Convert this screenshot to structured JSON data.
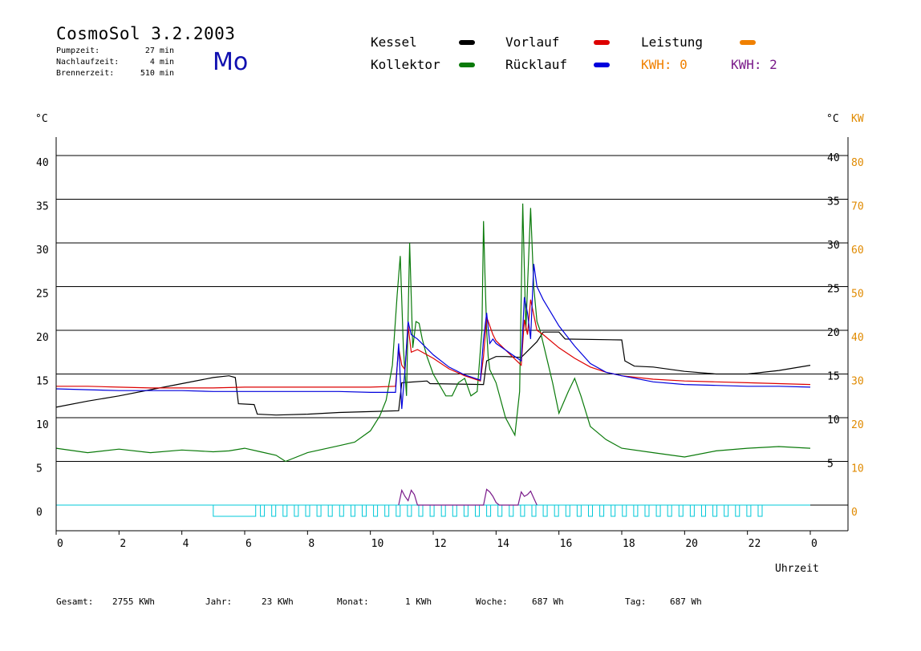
{
  "header": {
    "title": "CosmoSol 3.2.2003",
    "day": "Mo",
    "stats": [
      {
        "label": "Pumpzeit:",
        "value": "27 min"
      },
      {
        "label": "Nachlaufzeit:",
        "value": "4 min"
      },
      {
        "label": "Brennerzeit:",
        "value": "510 min"
      }
    ]
  },
  "legend": {
    "kessel": "Kessel",
    "kollektor": "Kollektor",
    "vorlauf": "Vorlauf",
    "ruecklauf": "Rücklauf",
    "leistung": "Leistung",
    "kwh1_label": "KWH:",
    "kwh1_value": "0",
    "kwh2_label": "KWH:",
    "kwh2_value": "2"
  },
  "colors": {
    "kessel": "#000000",
    "kollektor": "#0a7a0a",
    "vorlauf": "#dd0000",
    "ruecklauf": "#0000dd",
    "leistung": "#f08000",
    "kwh2": "#7a1a8a",
    "pump": "#00c8d8",
    "kw_axis": "#e08a00"
  },
  "axes": {
    "left_unit": "°C",
    "right_unit": "°C",
    "right_unit2": "KW",
    "x_label": "Uhrzeit"
  },
  "footer": {
    "gesamt_label": "Gesamt:",
    "gesamt_value": "2755 KWh",
    "jahr_label": "Jahr:",
    "jahr_value": "23 KWh",
    "monat_label": "Monat:",
    "monat_value": "1 KWh",
    "woche_label": "Woche:",
    "woche_value": "687 Wh",
    "tag_label": "Tag:",
    "tag_value": "687 Wh"
  },
  "chart_data": {
    "type": "line",
    "xlabel": "Uhrzeit",
    "ylabel": "°C",
    "xlim": [
      0,
      24
    ],
    "ylim": [
      -3,
      43
    ],
    "x_ticks": [
      "0",
      "2",
      "4",
      "6",
      "8",
      "10",
      "12",
      "14",
      "16",
      "18",
      "20",
      "22",
      "0"
    ],
    "y_left_ticks": [
      "0",
      "5",
      "10",
      "15",
      "20",
      "25",
      "30",
      "35",
      "40"
    ],
    "y_right_ticks": [
      "5",
      "10",
      "15",
      "20",
      "25",
      "30",
      "35",
      "40"
    ],
    "y_kw_ticks": [
      "0",
      "10",
      "20",
      "30",
      "40",
      "50",
      "60",
      "70",
      "80"
    ],
    "grid": true,
    "series": [
      {
        "name": "Kessel",
        "x": [
          0,
          1,
          2,
          3,
          4,
          5,
          5.5,
          5.7,
          5.8,
          6.3,
          6.4,
          7,
          8,
          9,
          10,
          10.9,
          11,
          11.8,
          11.9,
          13.6,
          13.7,
          14.0,
          14.3,
          14.8,
          15.3,
          15.5,
          16,
          16.2,
          18,
          18.1,
          18.4,
          19,
          20,
          21,
          22,
          23,
          24
        ],
        "y": [
          11.2,
          11.9,
          12.5,
          13.2,
          13.9,
          14.6,
          14.8,
          14.6,
          11.6,
          11.5,
          10.4,
          10.3,
          10.4,
          10.6,
          10.7,
          10.8,
          14.0,
          14.2,
          13.9,
          13.8,
          16.5,
          17.0,
          17.0,
          16.9,
          18.7,
          19.8,
          19.8,
          19.0,
          18.9,
          16.5,
          15.9,
          15.8,
          15.3,
          15.0,
          15.0,
          15.4,
          16.0
        ]
      },
      {
        "name": "Kollektor",
        "x": [
          0,
          1,
          2,
          3,
          4,
          5,
          5.5,
          6,
          6.5,
          7,
          7.3,
          8,
          9,
          9.5,
          10,
          10.3,
          10.5,
          10.7,
          10.85,
          10.95,
          11.05,
          11.15,
          11.25,
          11.35,
          11.45,
          11.55,
          11.65,
          11.8,
          12,
          12.4,
          12.6,
          12.8,
          13,
          13.2,
          13.4,
          13.55,
          13.6,
          13.65,
          13.7,
          13.75,
          13.8,
          14,
          14.3,
          14.6,
          14.75,
          14.85,
          14.9,
          14.95,
          15.0,
          15.1,
          15.2,
          15.3,
          15.4,
          15.6,
          15.8,
          16,
          16.3,
          16.5,
          16.7,
          17,
          17.5,
          18,
          19,
          20,
          21,
          22,
          23,
          24
        ],
        "y": [
          6.5,
          6,
          6.4,
          6,
          6.3,
          6.1,
          6.2,
          6.5,
          6.1,
          5.7,
          5,
          6,
          6.8,
          7.2,
          8.5,
          10.2,
          12,
          16,
          24,
          28.5,
          18,
          12.5,
          30,
          18,
          21,
          20.8,
          19,
          17,
          15,
          12.5,
          12.5,
          14,
          14.5,
          12.5,
          13,
          20,
          32.5,
          26,
          20,
          17,
          15.5,
          14,
          10,
          8,
          13,
          34.5,
          27,
          20,
          25,
          34,
          25,
          21,
          20,
          17,
          14,
          10.5,
          13,
          14.5,
          12.5,
          9,
          7.5,
          6.5,
          6,
          5.5,
          6.2,
          6.5,
          6.7,
          6.5
        ]
      },
      {
        "name": "Vorlauf",
        "x": [
          0,
          1,
          2,
          3,
          4,
          5,
          6,
          7,
          8,
          9,
          10,
          10.8,
          10.9,
          11,
          11.1,
          11.2,
          11.3,
          11.5,
          12,
          12.5,
          13,
          13.5,
          13.6,
          13.7,
          13.8,
          13.9,
          14,
          14.4,
          14.8,
          14.9,
          15.0,
          15.1,
          15.3,
          15.5,
          16,
          16.5,
          17,
          17.5,
          18,
          19,
          20,
          21,
          22,
          23,
          24
        ],
        "y": [
          13.6,
          13.6,
          13.5,
          13.4,
          13.4,
          13.4,
          13.5,
          13.5,
          13.5,
          13.5,
          13.5,
          13.6,
          18,
          16,
          15.5,
          20.5,
          17.5,
          17.8,
          16.8,
          15.6,
          14.8,
          14.2,
          17,
          21.5,
          20.5,
          19.5,
          18.8,
          17.4,
          16,
          21.2,
          19.5,
          23.5,
          20,
          19.5,
          18,
          16.8,
          15.8,
          15.2,
          14.8,
          14.4,
          14.2,
          14.1,
          14.0,
          13.9,
          13.8
        ]
      },
      {
        "name": "Rücklauf",
        "x": [
          0,
          1,
          2,
          3,
          4,
          5,
          6,
          7,
          8,
          9,
          10,
          10.8,
          10.9,
          11,
          11.1,
          11.2,
          11.3,
          11.5,
          12,
          12.5,
          13,
          13.5,
          13.6,
          13.7,
          13.8,
          13.9,
          14.0,
          14.4,
          14.8,
          14.9,
          15.0,
          15.1,
          15.2,
          15.3,
          15.5,
          16,
          16.5,
          17,
          17.5,
          18,
          19,
          20,
          21,
          22,
          23,
          24
        ],
        "y": [
          13.3,
          13.2,
          13.1,
          13.1,
          13.1,
          13.0,
          13.0,
          13.0,
          13.0,
          13.0,
          12.9,
          12.9,
          18.5,
          11,
          15.5,
          21,
          19.5,
          19,
          17.2,
          15.8,
          14.9,
          14.3,
          19,
          22,
          18.5,
          19,
          18.5,
          17.5,
          16.5,
          23.8,
          22,
          19,
          27.6,
          25,
          23.5,
          20.5,
          18.2,
          16.2,
          15.2,
          14.8,
          14.1,
          13.8,
          13.7,
          13.6,
          13.6,
          13.5
        ]
      },
      {
        "name": "Leistung",
        "x": [
          10.9,
          11.0,
          11.1,
          11.2,
          11.3,
          11.4,
          11.5,
          13.5,
          13.6,
          13.7,
          13.8,
          13.9,
          14.0,
          14.1,
          14.7,
          14.8,
          14.9,
          15.0,
          15.1,
          15.2,
          15.3
        ],
        "y": [
          0,
          1.7,
          1,
          0.5,
          1.7,
          1.2,
          0,
          0,
          0,
          1.8,
          1.5,
          1,
          0.3,
          0,
          0,
          1.5,
          1,
          1.2,
          1.6,
          0.8,
          0
        ]
      }
    ],
    "pump_activity": [
      [
        5.0,
        6.35
      ],
      [
        6.5,
        22.4
      ]
    ]
  }
}
